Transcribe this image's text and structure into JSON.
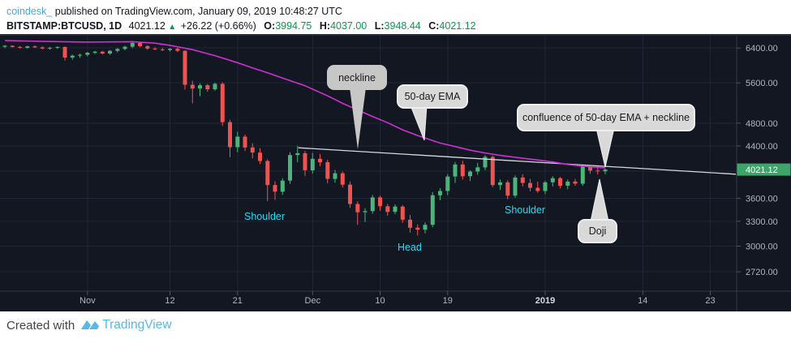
{
  "header": {
    "author": "coindesk_",
    "published_text": "published on TradingView.com, January 09, 2019 10:48:27 UTC",
    "symbol_interval": "BITSTAMP:BTCUSD, 1D",
    "last_price": "4021.12",
    "up_arrow": "▲",
    "change_text": "+26.22 (+0.66%)",
    "ohlc": [
      {
        "label": "O:",
        "value": "3994.75"
      },
      {
        "label": "H:",
        "value": "4037.00"
      },
      {
        "label": "L:",
        "value": "3948.44"
      },
      {
        "label": "C:",
        "value": "4021.12"
      }
    ]
  },
  "footer": {
    "created_with": "Created with",
    "brand": "TradingView"
  },
  "colors": {
    "chart_bg": "#131722",
    "grid": "#1f2637",
    "candle_up": "#4bb479",
    "candle_down": "#ef5350",
    "ema_line": "#cf2fd4",
    "neckline": "#d5d8dd",
    "axis_text": "#b2b5be",
    "axis_border": "#363a45",
    "tick": "#4f5360",
    "badge_bg": "#3da56a",
    "badge_text": "#ffffff",
    "callout_bg": "#d9d9d9",
    "cyan_label": "#2bd9ef",
    "header_green": "#089950",
    "author_blue": "#3fa9e0",
    "brand_blue": "#59b8e8"
  },
  "chart_data": {
    "type": "candlestick",
    "symbol": "BITSTAMP:BTCUSD",
    "interval": "1D",
    "scale": "log",
    "title": "BTC/USD daily with head-and-shoulders pattern, 50-day EMA and neckline",
    "y_axis": {
      "labels": [
        {
          "text": "6400.00",
          "price": 6400
        },
        {
          "text": "5600.00",
          "price": 5600
        },
        {
          "text": "4800.00",
          "price": 4800
        },
        {
          "text": "4400.00",
          "price": 4400
        },
        {
          "text": "3600.00",
          "price": 3600
        },
        {
          "text": "3300.00",
          "price": 3300
        },
        {
          "text": "3000.00",
          "price": 3000
        },
        {
          "text": "2720.00",
          "price": 2720
        }
      ],
      "grid_prices": [
        6400,
        5600,
        4800,
        4400,
        4000,
        3600,
        3300,
        3000,
        2720
      ],
      "last_price_badge": {
        "text": "4021.12",
        "price": 4021.12
      }
    },
    "x_axis": {
      "labels": [
        {
          "text": "Nov",
          "day": 11,
          "bold": false
        },
        {
          "text": "12",
          "day": 22,
          "bold": false
        },
        {
          "text": "21",
          "day": 31,
          "bold": false
        },
        {
          "text": "Dec",
          "day": 41,
          "bold": false
        },
        {
          "text": "10",
          "day": 50,
          "bold": false
        },
        {
          "text": "19",
          "day": 59,
          "bold": false
        },
        {
          "text": "2019",
          "day": 72,
          "bold": true
        },
        {
          "text": "14",
          "day": 85,
          "bold": false
        },
        {
          "text": "23",
          "day": 94,
          "bold": false
        }
      ]
    },
    "candles": [
      [
        "2018-10-21",
        6430,
        6470,
        6400,
        6455
      ],
      [
        "2018-10-22",
        6455,
        6465,
        6410,
        6425
      ],
      [
        "2018-10-23",
        6425,
        6450,
        6390,
        6405
      ],
      [
        "2018-10-24",
        6405,
        6455,
        6385,
        6440
      ],
      [
        "2018-10-25",
        6440,
        6460,
        6400,
        6415
      ],
      [
        "2018-10-26",
        6415,
        6440,
        6370,
        6385
      ],
      [
        "2018-10-27",
        6385,
        6425,
        6355,
        6405
      ],
      [
        "2018-10-28",
        6405,
        6440,
        6380,
        6425
      ],
      [
        "2018-10-29",
        6425,
        6435,
        6100,
        6170
      ],
      [
        "2018-10-30",
        6170,
        6240,
        6120,
        6215
      ],
      [
        "2018-10-31",
        6215,
        6265,
        6165,
        6235
      ],
      [
        "2018-11-01",
        6235,
        6300,
        6200,
        6285
      ],
      [
        "2018-11-02",
        6285,
        6330,
        6250,
        6310
      ],
      [
        "2018-11-03",
        6310,
        6330,
        6245,
        6265
      ],
      [
        "2018-11-04",
        6265,
        6350,
        6235,
        6330
      ],
      [
        "2018-11-05",
        6330,
        6400,
        6295,
        6375
      ],
      [
        "2018-11-06",
        6375,
        6450,
        6345,
        6430
      ],
      [
        "2018-11-07",
        6430,
        6545,
        6395,
        6525
      ],
      [
        "2018-11-08",
        6525,
        6535,
        6415,
        6445
      ],
      [
        "2018-11-09",
        6445,
        6465,
        6355,
        6385
      ],
      [
        "2018-11-10",
        6385,
        6420,
        6345,
        6365
      ],
      [
        "2018-11-11",
        6365,
        6405,
        6325,
        6350
      ],
      [
        "2018-11-12",
        6350,
        6400,
        6315,
        6380
      ],
      [
        "2018-11-13",
        6380,
        6410,
        6300,
        6330
      ],
      [
        "2018-11-14",
        6330,
        6345,
        5460,
        5560
      ],
      [
        "2018-11-15",
        5560,
        5645,
        5180,
        5480
      ],
      [
        "2018-11-16",
        5480,
        5590,
        5320,
        5550
      ],
      [
        "2018-11-17",
        5550,
        5575,
        5415,
        5465
      ],
      [
        "2018-11-18",
        5465,
        5605,
        5435,
        5580
      ],
      [
        "2018-11-19",
        5580,
        5615,
        4750,
        4820
      ],
      [
        "2018-11-20",
        4820,
        4865,
        4215,
        4380
      ],
      [
        "2018-11-21",
        4380,
        4645,
        4295,
        4560
      ],
      [
        "2018-11-22",
        4560,
        4595,
        4315,
        4375
      ],
      [
        "2018-11-23",
        4375,
        4445,
        4195,
        4290
      ],
      [
        "2018-11-24",
        4290,
        4365,
        4105,
        4155
      ],
      [
        "2018-11-25",
        4155,
        4180,
        3565,
        3790
      ],
      [
        "2018-11-26",
        3790,
        3845,
        3580,
        3695
      ],
      [
        "2018-11-27",
        3695,
        3890,
        3650,
        3855
      ],
      [
        "2018-11-28",
        3855,
        4295,
        3805,
        4250
      ],
      [
        "2018-11-29",
        4250,
        4405,
        4135,
        4280
      ],
      [
        "2018-11-30",
        4280,
        4315,
        3925,
        4010
      ],
      [
        "2018-12-01",
        4010,
        4285,
        3960,
        4190
      ],
      [
        "2018-12-02",
        4190,
        4270,
        4075,
        4135
      ],
      [
        "2018-12-03",
        4135,
        4175,
        3815,
        3880
      ],
      [
        "2018-12-04",
        3880,
        4015,
        3825,
        3965
      ],
      [
        "2018-12-05",
        3965,
        3990,
        3755,
        3795
      ],
      [
        "2018-12-06",
        3795,
        3840,
        3475,
        3525
      ],
      [
        "2018-12-07",
        3525,
        3560,
        3255,
        3415
      ],
      [
        "2018-12-08",
        3415,
        3470,
        3290,
        3430
      ],
      [
        "2018-12-09",
        3430,
        3650,
        3395,
        3615
      ],
      [
        "2018-12-10",
        3615,
        3640,
        3435,
        3495
      ],
      [
        "2018-12-11",
        3495,
        3525,
        3370,
        3420
      ],
      [
        "2018-12-12",
        3420,
        3520,
        3390,
        3490
      ],
      [
        "2018-12-13",
        3490,
        3510,
        3280,
        3320
      ],
      [
        "2018-12-14",
        3320,
        3380,
        3160,
        3220
      ],
      [
        "2018-12-15",
        3220,
        3260,
        3125,
        3195
      ],
      [
        "2018-12-16",
        3195,
        3285,
        3150,
        3255
      ],
      [
        "2018-12-17",
        3255,
        3690,
        3225,
        3645
      ],
      [
        "2018-12-18",
        3645,
        3745,
        3575,
        3705
      ],
      [
        "2018-12-19",
        3705,
        3950,
        3645,
        3915
      ],
      [
        "2018-12-20",
        3915,
        4140,
        3820,
        4100
      ],
      [
        "2018-12-21",
        4100,
        4160,
        3870,
        3920
      ],
      [
        "2018-12-22",
        3920,
        4010,
        3850,
        3990
      ],
      [
        "2018-12-23",
        3990,
        4125,
        3940,
        4055
      ],
      [
        "2018-12-24",
        4055,
        4250,
        4010,
        4220
      ],
      [
        "2018-12-25",
        4220,
        4240,
        3760,
        3790
      ],
      [
        "2018-12-26",
        3790,
        3870,
        3720,
        3830
      ],
      [
        "2018-12-27",
        3830,
        3860,
        3590,
        3640
      ],
      [
        "2018-12-28",
        3640,
        3930,
        3610,
        3900
      ],
      [
        "2018-12-29",
        3900,
        3950,
        3770,
        3820
      ],
      [
        "2018-12-30",
        3820,
        3880,
        3700,
        3750
      ],
      [
        "2018-12-31",
        3750,
        3840,
        3680,
        3705
      ],
      [
        "2019-01-01",
        3705,
        3850,
        3660,
        3830
      ],
      [
        "2019-01-02",
        3830,
        3920,
        3770,
        3890
      ],
      [
        "2019-01-03",
        3890,
        3910,
        3740,
        3780
      ],
      [
        "2019-01-04",
        3780,
        3870,
        3730,
        3840
      ],
      [
        "2019-01-05",
        3840,
        3880,
        3780,
        3810
      ],
      [
        "2019-01-06",
        3810,
        4090,
        3780,
        4070
      ],
      [
        "2019-01-07",
        4070,
        4090,
        3955,
        4005
      ],
      [
        "2019-01-08",
        4005,
        4075,
        3945,
        3995
      ],
      [
        "2019-01-09",
        3994.75,
        4037.0,
        3948.44,
        4021.12
      ]
    ],
    "ema": {
      "name": "50-day EMA",
      "points": [
        [
          0,
          6585
        ],
        [
          6,
          6560
        ],
        [
          11,
          6545
        ],
        [
          14,
          6550
        ],
        [
          17,
          6555
        ],
        [
          20,
          6520
        ],
        [
          22,
          6465
        ],
        [
          25,
          6360
        ],
        [
          28,
          6215
        ],
        [
          31,
          6050
        ],
        [
          33,
          5930
        ],
        [
          35,
          5820
        ],
        [
          37,
          5705
        ],
        [
          40,
          5540
        ],
        [
          43,
          5330
        ],
        [
          45,
          5180
        ],
        [
          47,
          5050
        ],
        [
          49,
          4925
        ],
        [
          51,
          4810
        ],
        [
          53,
          4680
        ],
        [
          55,
          4580
        ],
        [
          58,
          4450
        ],
        [
          60,
          4390
        ],
        [
          62,
          4330
        ],
        [
          64,
          4285
        ],
        [
          66,
          4245
        ],
        [
          68,
          4215
        ],
        [
          71,
          4170
        ],
        [
          73,
          4140
        ],
        [
          75,
          4100
        ],
        [
          77,
          4075
        ],
        [
          79,
          4055
        ],
        [
          80,
          4045
        ]
      ]
    },
    "neckline": {
      "name": "neckline",
      "points": [
        [
          39.1,
          4370
        ],
        [
          97.4,
          3950
        ]
      ]
    },
    "annotations": {
      "callouts": [
        {
          "id": "neckline",
          "text": "neckline"
        },
        {
          "id": "ema",
          "text": "50-day EMA"
        },
        {
          "id": "confluence",
          "text": "confluence of 50-day EMA + neckline"
        },
        {
          "id": "doji",
          "text": "Doji"
        }
      ],
      "pattern_labels": [
        {
          "id": "shoulder-left",
          "text": "Shoulder"
        },
        {
          "id": "head",
          "text": "Head"
        },
        {
          "id": "shoulder-right",
          "text": "Shoulder"
        }
      ]
    }
  }
}
